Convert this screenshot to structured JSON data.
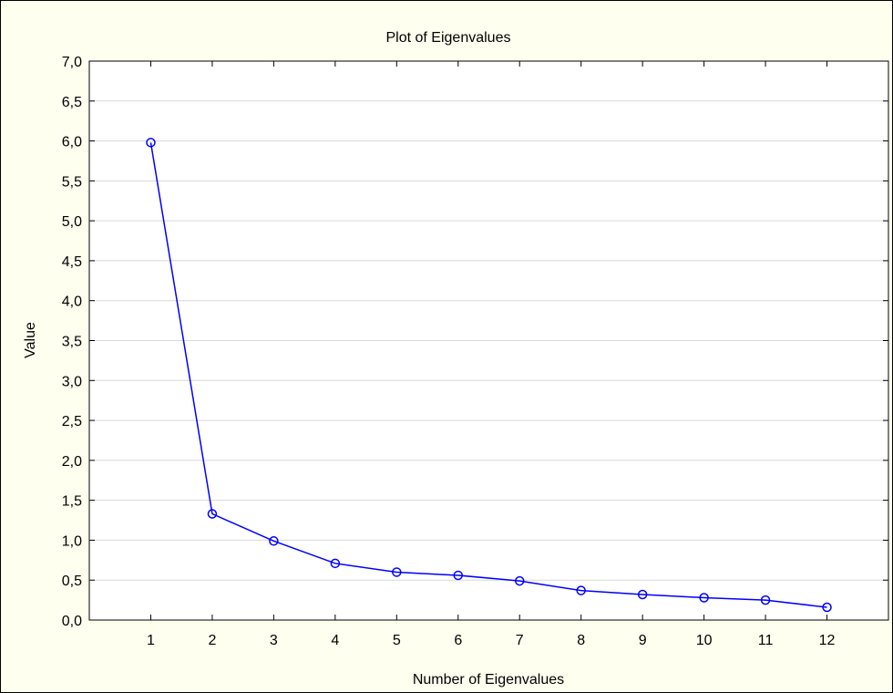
{
  "chart_data": {
    "type": "line",
    "title": "Plot of Eigenvalues",
    "xlabel": "Number of Eigenvalues",
    "ylabel": "Value",
    "x": [
      1,
      2,
      3,
      4,
      5,
      6,
      7,
      8,
      9,
      10,
      11,
      12
    ],
    "x_tick_labels": [
      "1",
      "2",
      "3",
      "4",
      "5",
      "6",
      "7",
      "8",
      "9",
      "10",
      "11",
      "12"
    ],
    "xlim": [
      0,
      13
    ],
    "ylim": [
      0,
      7
    ],
    "y_ticks": [
      0,
      0.5,
      1,
      1.5,
      2,
      2.5,
      3,
      3.5,
      4,
      4.5,
      5,
      5.5,
      6,
      6.5,
      7
    ],
    "y_tick_labels": [
      "0,0",
      "0,5",
      "1,0",
      "1,5",
      "2,0",
      "2,5",
      "3,0",
      "3,5",
      "4,0",
      "4,5",
      "5,0",
      "5,5",
      "6,0",
      "6,5",
      "7,0"
    ],
    "series": [
      {
        "values": [
          5.98,
          1.33,
          0.99,
          0.71,
          0.6,
          0.56,
          0.49,
          0.37,
          0.32,
          0.28,
          0.25,
          0.16
        ]
      }
    ],
    "grid": true,
    "line_color": "#0000ff",
    "background_color": "#fffff0",
    "plot_background": "#ffffff",
    "grid_color": "#d8d8d8"
  }
}
